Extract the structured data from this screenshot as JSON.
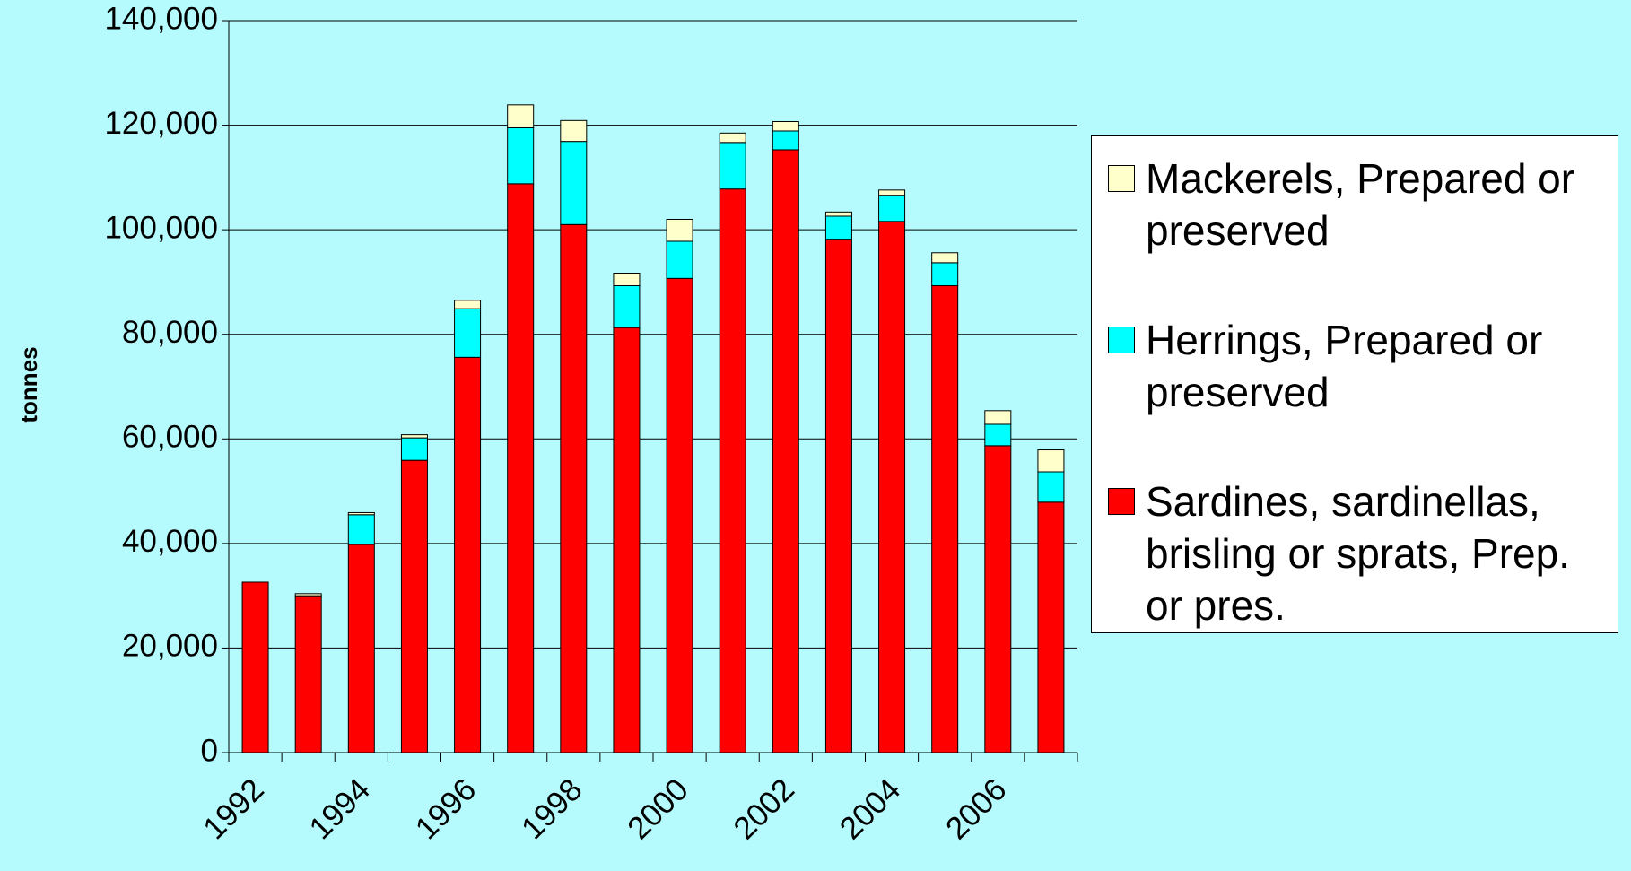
{
  "chart_data": {
    "type": "stacked-bar",
    "y_label": "tonnes",
    "categories": [
      "1992",
      null,
      "1994",
      null,
      "1996",
      null,
      "1998",
      null,
      "2000",
      null,
      "2002",
      null,
      "2004",
      null,
      "2006",
      null
    ],
    "series": [
      {
        "name": "Sardines, sardinellas, brisling or sprats, Prep. or pres.",
        "color": "#ff0000",
        "values": [
          32600,
          30000,
          39800,
          55900,
          75600,
          108800,
          101000,
          81300,
          90700,
          107800,
          115300,
          98200,
          101600,
          89300,
          58700,
          47900
        ]
      },
      {
        "name": "Herrings, Prepared or preserved",
        "color": "#00ffff",
        "values": [
          0,
          0,
          5700,
          4300,
          9300,
          10700,
          15900,
          8000,
          7100,
          8900,
          3600,
          4400,
          5000,
          4400,
          4100,
          5800
        ]
      },
      {
        "name": "Mackerels, Prepared or preserved",
        "color": "#ffffcc",
        "values": [
          0,
          400,
          400,
          600,
          1600,
          4400,
          4000,
          2400,
          4200,
          1800,
          1800,
          800,
          1000,
          1900,
          2600,
          4200
        ]
      }
    ],
    "ylim": [
      0,
      140000
    ],
    "yticks": [
      0,
      {
        "value": 20000,
        "label": "20,000"
      },
      {
        "value": 40000,
        "label": "40,000"
      },
      {
        "value": 60000,
        "label": "60,000"
      },
      {
        "value": 80000,
        "label": "80,000"
      },
      {
        "value": 100000,
        "label": "100,000"
      },
      {
        "value": 120000,
        "label": "120,000"
      },
      {
        "value": 140000,
        "label": "140,000"
      }
    ],
    "grid": true,
    "legend": "right"
  }
}
